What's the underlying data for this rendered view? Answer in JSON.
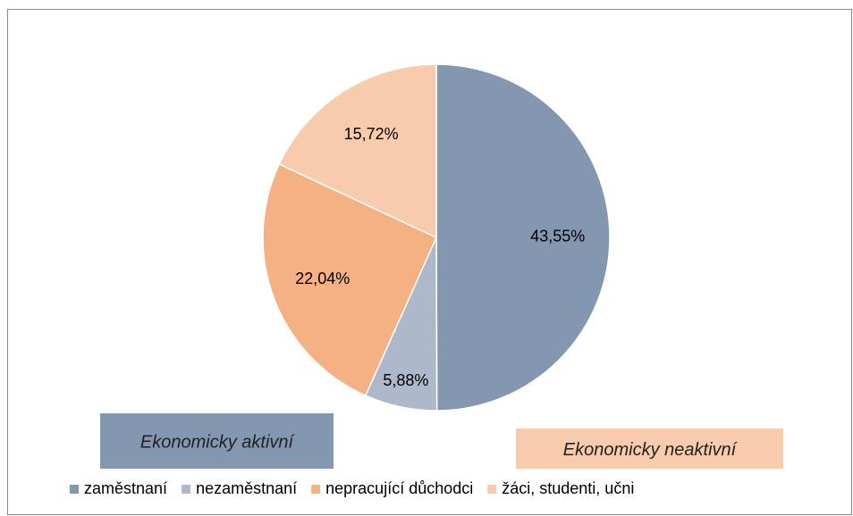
{
  "chart_data": {
    "type": "pie",
    "categories": [
      "zaměstnaní",
      "nezaměstnaní",
      "nepracující důchodci",
      "žáci, studenti, učni"
    ],
    "values": [
      43.55,
      5.88,
      22.04,
      15.72
    ],
    "value_labels": [
      "43,55%",
      "5,88%",
      "22,04%",
      "15,72%"
    ],
    "colors": [
      "#8497b0",
      "#adb9ca",
      "#f4b183",
      "#f8cbad"
    ],
    "annotations": [
      {
        "text": "Ekonomicky aktivní",
        "color": "#8497b0"
      },
      {
        "text": "Ekonomicky neaktivní",
        "color": "#f8cbad"
      }
    ],
    "legend": "bottom"
  }
}
